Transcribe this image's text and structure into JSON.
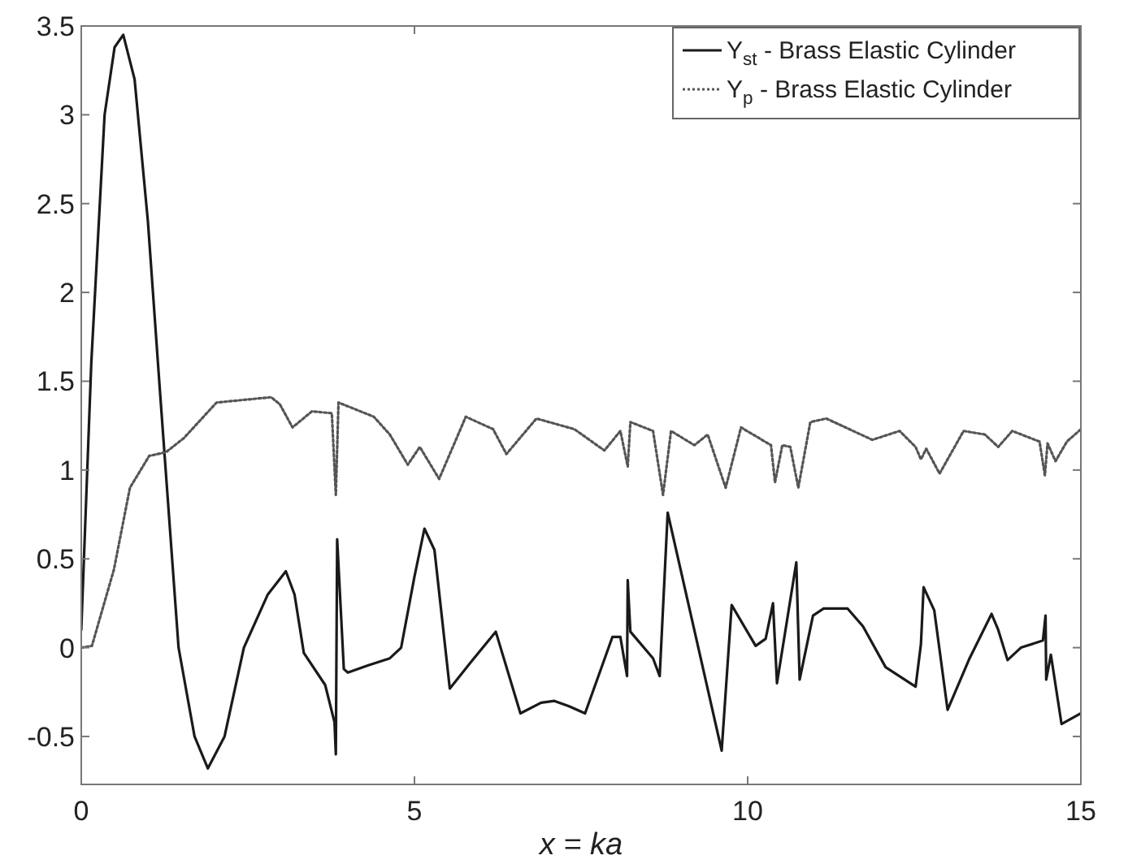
{
  "chart_data": {
    "type": "line",
    "xlabel": "x = ka",
    "xlim": [
      0,
      15
    ],
    "xticks": [
      0,
      5,
      10,
      15
    ],
    "ylim": [
      -0.77,
      3.5
    ],
    "yticks": [
      -0.5,
      0,
      0.5,
      1,
      1.5,
      2,
      2.5,
      3,
      3.5
    ],
    "grid": false,
    "legend": "top right",
    "marker": "none",
    "series": [
      {
        "name": "Y$_{st}$ - Brass Elastic Cylinder",
        "color": "#1a1a1a",
        "line_style": "solid",
        "x": [
          0,
          0.15,
          0.35,
          0.5,
          0.63,
          0.8,
          1.0,
          1.17,
          1.46,
          1.7,
          1.9,
          2.15,
          2.44,
          2.8,
          3.07,
          3.2,
          3.34,
          3.66,
          3.8,
          3.82,
          3.84,
          3.94,
          4.0,
          4.3,
          4.63,
          4.8,
          5.0,
          5.15,
          5.3,
          5.53,
          5.85,
          6.22,
          6.59,
          6.9,
          7.1,
          7.32,
          7.56,
          7.97,
          8.09,
          8.19,
          8.2,
          8.24,
          8.58,
          8.68,
          8.8,
          9.61,
          9.76,
          10.12,
          10.27,
          10.38,
          10.44,
          10.73,
          10.78,
          10.98,
          11.14,
          11.5,
          11.73,
          12.07,
          12.44,
          12.52,
          12.6,
          12.64,
          12.8,
          13.0,
          13.33,
          13.66,
          13.76,
          13.9,
          14.1,
          14.43,
          14.47,
          14.48,
          14.55,
          14.71,
          15
        ],
        "values": [
          0.1,
          1.6,
          3.0,
          3.38,
          3.45,
          3.2,
          2.4,
          1.5,
          0.0,
          -0.5,
          -0.68,
          -0.5,
          0.0,
          0.3,
          0.43,
          0.3,
          -0.03,
          -0.21,
          -0.42,
          -0.6,
          0.61,
          -0.12,
          -0.14,
          -0.1,
          -0.06,
          0.0,
          0.4,
          0.67,
          0.55,
          -0.23,
          -0.08,
          0.09,
          -0.37,
          -0.31,
          -0.3,
          -0.33,
          -0.37,
          0.06,
          0.06,
          -0.16,
          0.38,
          0.09,
          -0.06,
          -0.16,
          0.76,
          -0.58,
          0.24,
          0.01,
          0.05,
          0.25,
          -0.2,
          0.48,
          -0.18,
          0.18,
          0.22,
          0.22,
          0.12,
          -0.11,
          -0.2,
          -0.22,
          0.02,
          0.34,
          0.21,
          -0.35,
          -0.06,
          0.19,
          0.1,
          -0.07,
          0.0,
          0.04,
          0.18,
          -0.18,
          -0.04,
          -0.43,
          -0.37
        ]
      },
      {
        "name": "Y$_{p}$ - Brass Elastic Cylinder",
        "color": "#555555",
        "line_style": "dotted",
        "x": [
          0,
          0.16,
          0.49,
          0.73,
          1.02,
          1.27,
          1.54,
          2.03,
          2.85,
          2.98,
          3.17,
          3.46,
          3.76,
          3.82,
          3.86,
          4.39,
          4.63,
          4.9,
          5.08,
          5.37,
          5.77,
          6.18,
          6.38,
          6.83,
          7.4,
          7.85,
          8.09,
          8.2,
          8.24,
          8.58,
          8.73,
          8.85,
          9.2,
          9.4,
          9.67,
          9.9,
          10.35,
          10.41,
          10.52,
          10.64,
          10.76,
          10.94,
          11.18,
          11.87,
          12.28,
          12.52,
          12.6,
          12.68,
          12.88,
          13.24,
          13.56,
          13.76,
          13.97,
          14.38,
          14.46,
          14.5,
          14.62,
          14.79,
          15
        ],
        "values": [
          0,
          0.01,
          0.44,
          0.9,
          1.08,
          1.1,
          1.18,
          1.38,
          1.41,
          1.37,
          1.24,
          1.33,
          1.32,
          0.86,
          1.38,
          1.3,
          1.2,
          1.03,
          1.13,
          0.95,
          1.3,
          1.23,
          1.09,
          1.29,
          1.23,
          1.11,
          1.22,
          1.02,
          1.27,
          1.22,
          0.86,
          1.22,
          1.14,
          1.2,
          0.9,
          1.24,
          1.14,
          0.93,
          1.14,
          1.13,
          0.9,
          1.27,
          1.29,
          1.17,
          1.22,
          1.13,
          1.06,
          1.12,
          0.98,
          1.22,
          1.2,
          1.13,
          1.22,
          1.16,
          0.97,
          1.15,
          1.05,
          1.16,
          1.23
        ]
      }
    ]
  }
}
